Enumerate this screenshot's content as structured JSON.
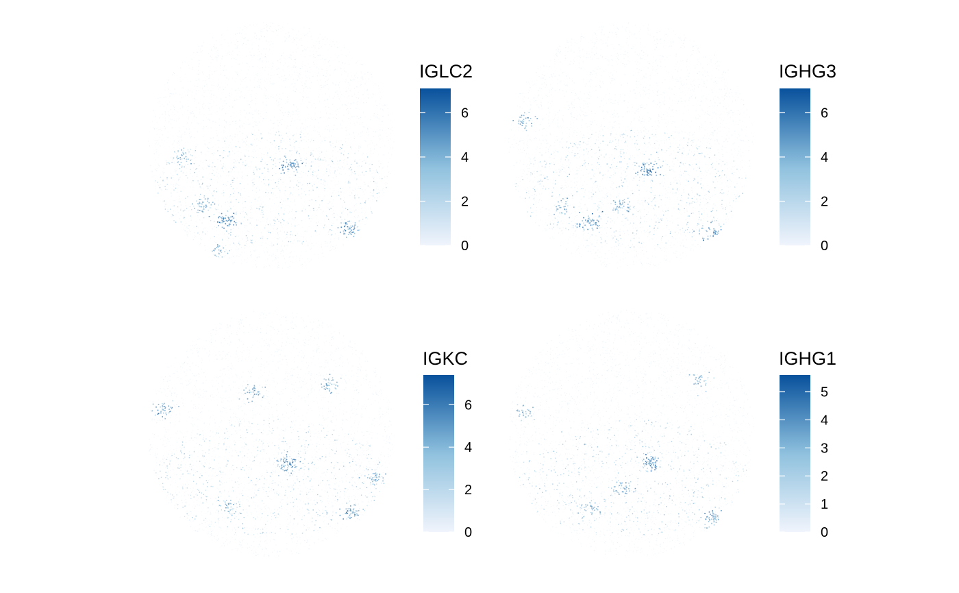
{
  "chart_data": [
    {
      "type": "scatter",
      "gene": "IGLC2",
      "legend": {
        "title": "IGLC2",
        "range": [
          0,
          7.1
        ],
        "ticks": [
          0,
          2,
          4,
          6
        ],
        "tick_labels": [
          "0",
          "2",
          "4",
          "6"
        ]
      },
      "color_scale": {
        "low": "#f0f4fc",
        "mid": "#9ecae1",
        "high": "#08519c"
      },
      "hotspots": [
        {
          "x": 0.58,
          "y": 0.58,
          "strength": 0.9
        },
        {
          "x": 0.32,
          "y": 0.8,
          "strength": 1.0
        },
        {
          "x": 0.82,
          "y": 0.84,
          "strength": 0.8
        },
        {
          "x": 0.22,
          "y": 0.74,
          "strength": 0.6
        },
        {
          "x": 0.14,
          "y": 0.55,
          "strength": 0.5
        },
        {
          "x": 0.28,
          "y": 0.93,
          "strength": 0.5
        }
      ]
    },
    {
      "type": "scatter",
      "gene": "IGHG3",
      "legend": {
        "title": "IGHG3",
        "range": [
          0,
          7.1
        ],
        "ticks": [
          0,
          2,
          4,
          6
        ],
        "tick_labels": [
          "0",
          "2",
          "4",
          "6"
        ]
      },
      "color_scale": {
        "low": "#f0f4fc",
        "mid": "#9ecae1",
        "high": "#08519c"
      },
      "hotspots": [
        {
          "x": 0.57,
          "y": 0.6,
          "strength": 1.0
        },
        {
          "x": 0.33,
          "y": 0.81,
          "strength": 0.9
        },
        {
          "x": 0.83,
          "y": 0.85,
          "strength": 0.8
        },
        {
          "x": 0.07,
          "y": 0.4,
          "strength": 0.6
        },
        {
          "x": 0.46,
          "y": 0.74,
          "strength": 0.6
        },
        {
          "x": 0.22,
          "y": 0.75,
          "strength": 0.5
        }
      ]
    },
    {
      "type": "scatter",
      "gene": "IGKC",
      "legend": {
        "title": "IGKC",
        "range": [
          0,
          7.4
        ],
        "ticks": [
          0,
          2,
          4,
          6
        ],
        "tick_labels": [
          "0",
          "2",
          "4",
          "6"
        ]
      },
      "color_scale": {
        "low": "#f0f4fc",
        "mid": "#9ecae1",
        "high": "#08519c"
      },
      "hotspots": [
        {
          "x": 0.57,
          "y": 0.62,
          "strength": 1.0
        },
        {
          "x": 0.82,
          "y": 0.82,
          "strength": 0.8
        },
        {
          "x": 0.43,
          "y": 0.33,
          "strength": 0.6
        },
        {
          "x": 0.74,
          "y": 0.3,
          "strength": 0.6
        },
        {
          "x": 0.06,
          "y": 0.4,
          "strength": 0.7
        },
        {
          "x": 0.92,
          "y": 0.68,
          "strength": 0.6
        },
        {
          "x": 0.33,
          "y": 0.79,
          "strength": 0.5
        }
      ]
    },
    {
      "type": "scatter",
      "gene": "IGHG1",
      "legend": {
        "title": "IGHG1",
        "range": [
          0,
          5.6
        ],
        "ticks": [
          0,
          1,
          2,
          3,
          4,
          5
        ],
        "tick_labels": [
          "0",
          "1",
          "2",
          "3",
          "4",
          "5"
        ]
      },
      "color_scale": {
        "low": "#f0f4fc",
        "mid": "#9ecae1",
        "high": "#08519c"
      },
      "hotspots": [
        {
          "x": 0.58,
          "y": 0.62,
          "strength": 1.0
        },
        {
          "x": 0.83,
          "y": 0.84,
          "strength": 0.8
        },
        {
          "x": 0.46,
          "y": 0.72,
          "strength": 0.6
        },
        {
          "x": 0.33,
          "y": 0.8,
          "strength": 0.5
        },
        {
          "x": 0.78,
          "y": 0.28,
          "strength": 0.5
        },
        {
          "x": 0.06,
          "y": 0.41,
          "strength": 0.5
        }
      ]
    }
  ]
}
